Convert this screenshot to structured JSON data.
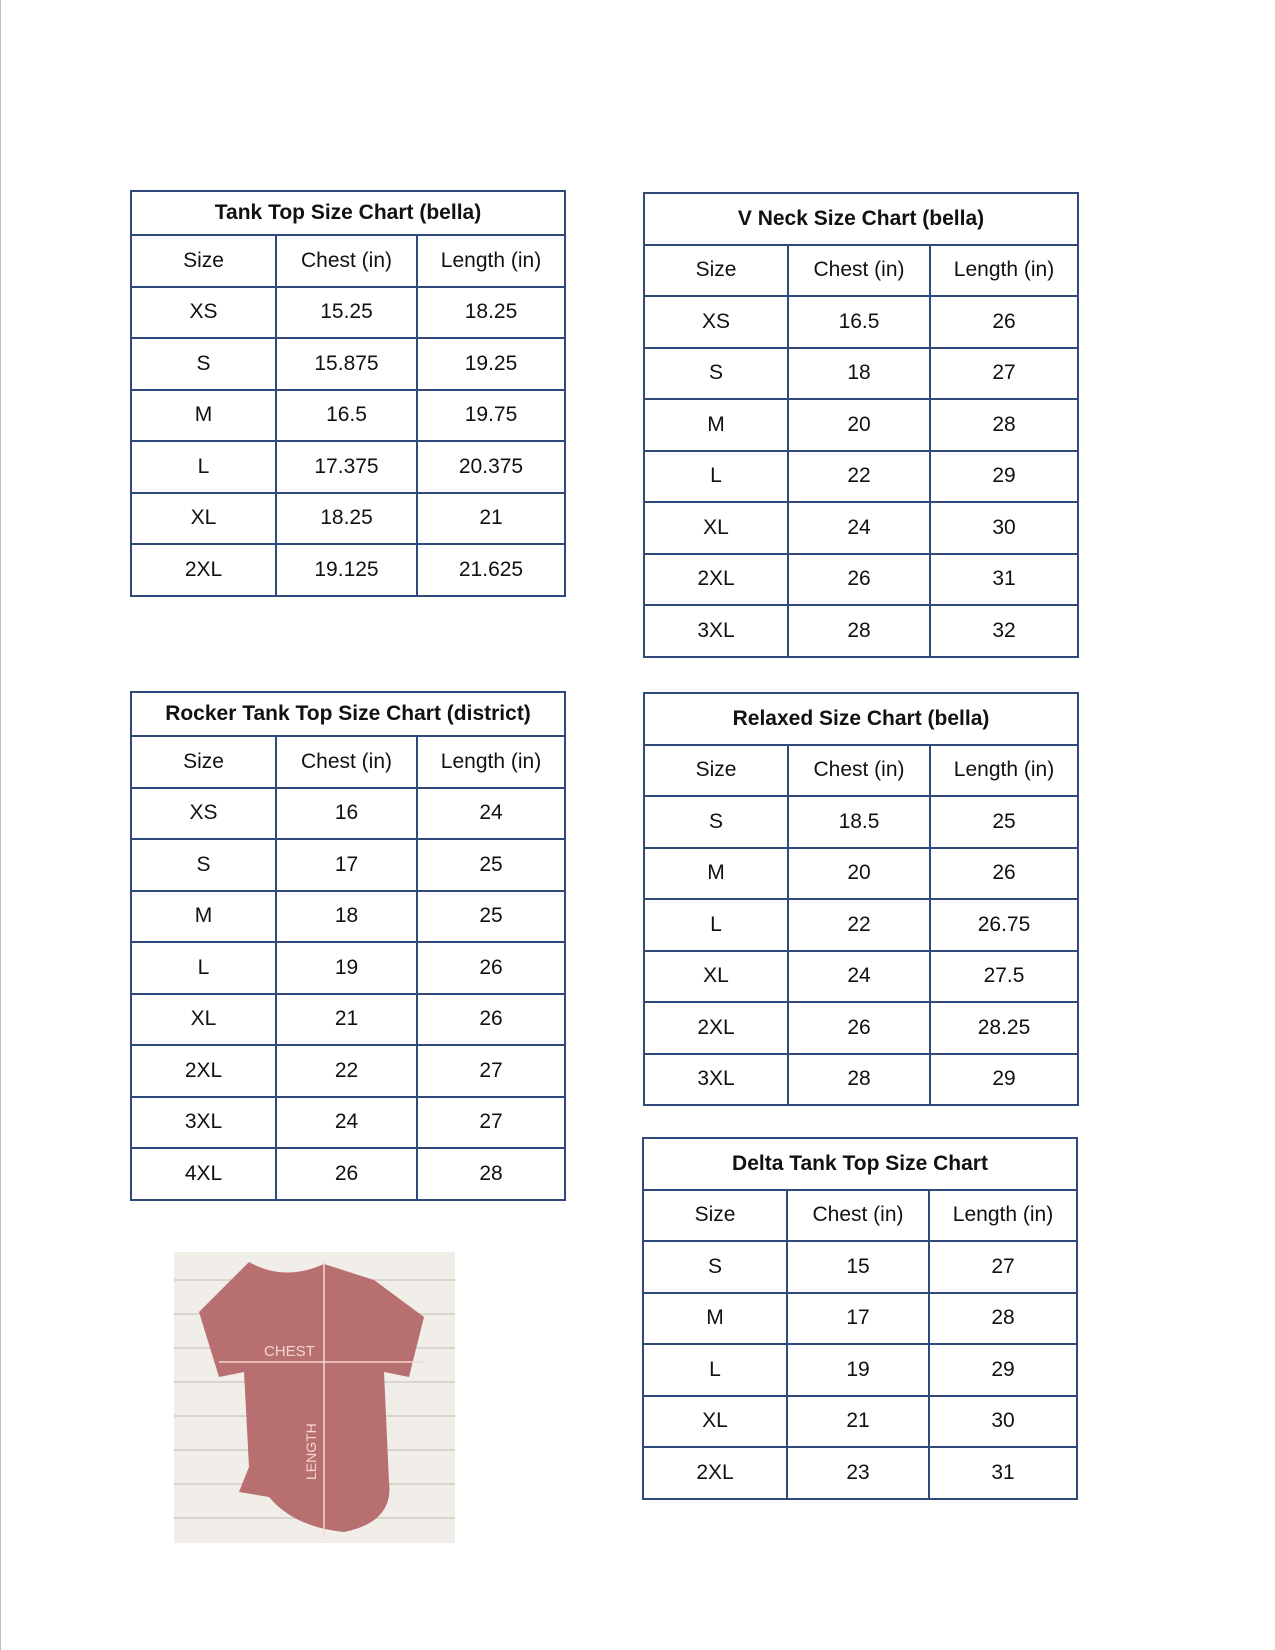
{
  "tables": [
    {
      "id": "tank-top",
      "title": "Tank Top Size Chart  (bella)",
      "headers": [
        "Size",
        "Chest (in)",
        "Length (in)"
      ],
      "rows": [
        [
          "XS",
          "15.25",
          "18.25"
        ],
        [
          "S",
          "15.875",
          "19.25"
        ],
        [
          "M",
          "16.5",
          "19.75"
        ],
        [
          "L",
          "17.375",
          "20.375"
        ],
        [
          "XL",
          "18.25",
          "21"
        ],
        [
          "2XL",
          "19.125",
          "21.625"
        ]
      ]
    },
    {
      "id": "v-neck",
      "title": "V Neck Size Chart  (bella)",
      "headers": [
        "Size",
        "Chest (in)",
        "Length (in)"
      ],
      "rows": [
        [
          "XS",
          "16.5",
          "26"
        ],
        [
          "S",
          "18",
          "27"
        ],
        [
          "M",
          "20",
          "28"
        ],
        [
          "L",
          "22",
          "29"
        ],
        [
          "XL",
          "24",
          "30"
        ],
        [
          "2XL",
          "26",
          "31"
        ],
        [
          "3XL",
          "28",
          "32"
        ]
      ]
    },
    {
      "id": "rocker-tank",
      "title": "Rocker Tank Top Size Chart (district)",
      "headers": [
        "Size",
        "Chest (in)",
        "Length (in)"
      ],
      "rows": [
        [
          "XS",
          "16",
          "24"
        ],
        [
          "S",
          "17",
          "25"
        ],
        [
          "M",
          "18",
          "25"
        ],
        [
          "L",
          "19",
          "26"
        ],
        [
          "XL",
          "21",
          "26"
        ],
        [
          "2XL",
          "22",
          "27"
        ],
        [
          "3XL",
          "24",
          "27"
        ],
        [
          "4XL",
          "26",
          "28"
        ]
      ]
    },
    {
      "id": "relaxed",
      "title": "Relaxed Size Chart (bella)",
      "headers": [
        "Size",
        "Chest (in)",
        "Length (in)"
      ],
      "rows": [
        [
          "S",
          "18.5",
          "25"
        ],
        [
          "M",
          "20",
          "26"
        ],
        [
          "L",
          "22",
          "26.75"
        ],
        [
          "XL",
          "24",
          "27.5"
        ],
        [
          "2XL",
          "26",
          "28.25"
        ],
        [
          "3XL",
          "28",
          "29"
        ]
      ]
    },
    {
      "id": "delta-tank",
      "title": "Delta Tank Top Size Chart",
      "headers": [
        "Size",
        "Chest (in)",
        "Length (in)"
      ],
      "rows": [
        [
          "S",
          "15",
          "27"
        ],
        [
          "M",
          "17",
          "28"
        ],
        [
          "L",
          "19",
          "29"
        ],
        [
          "XL",
          "21",
          "30"
        ],
        [
          "2XL",
          "23",
          "31"
        ]
      ]
    }
  ],
  "photo": {
    "chest_label": "CHEST",
    "length_label": "LENGTH",
    "shirt_color": "#b86f70"
  },
  "colors": {
    "border": "#2f4a7a"
  }
}
